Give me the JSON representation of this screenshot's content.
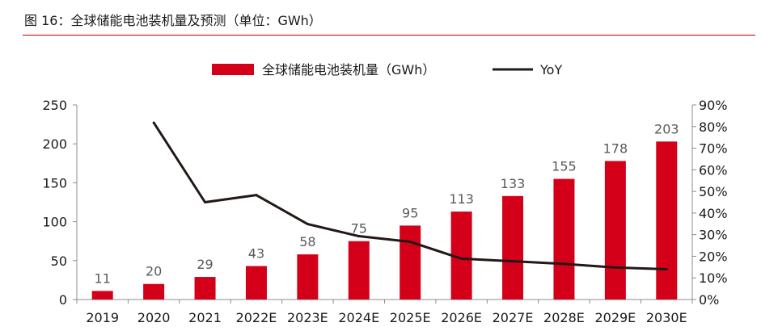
{
  "figure": {
    "title": "图 16：全球储能电池装机量及预测（单位：GWh）"
  },
  "colors": {
    "bar": "#d40019",
    "line": "#231816",
    "rule": "#c00000"
  },
  "chart_data": {
    "type": "bar",
    "categories": [
      "2019",
      "2020",
      "2021",
      "2022E",
      "2023E",
      "2024E",
      "2025E",
      "2026E",
      "2027E",
      "2028E",
      "2029E",
      "2030E"
    ],
    "series": [
      {
        "name": "全球储能电池装机量（GWh）",
        "type": "bar",
        "axis": "left",
        "values": [
          11,
          20,
          29,
          43,
          58,
          75,
          95,
          113,
          133,
          155,
          178,
          203
        ],
        "labels": [
          "11",
          "20",
          "29",
          "43",
          "58",
          "75",
          "95",
          "113",
          "133",
          "155",
          "178",
          "203"
        ]
      },
      {
        "name": "YoY",
        "type": "line",
        "axis": "right",
        "values": [
          null,
          0.818,
          0.45,
          0.483,
          0.349,
          0.293,
          0.267,
          0.189,
          0.177,
          0.165,
          0.148,
          0.14
        ]
      }
    ],
    "y_left": {
      "min": 0,
      "max": 250,
      "ticks": [
        "0",
        "50",
        "100",
        "150",
        "200",
        "250"
      ]
    },
    "y_right": {
      "min": 0,
      "max": 0.9,
      "ticks": [
        "0%",
        "10%",
        "20%",
        "30%",
        "40%",
        "50%",
        "60%",
        "70%",
        "80%",
        "90%"
      ]
    },
    "legend_position": "top-center",
    "grid": false
  }
}
